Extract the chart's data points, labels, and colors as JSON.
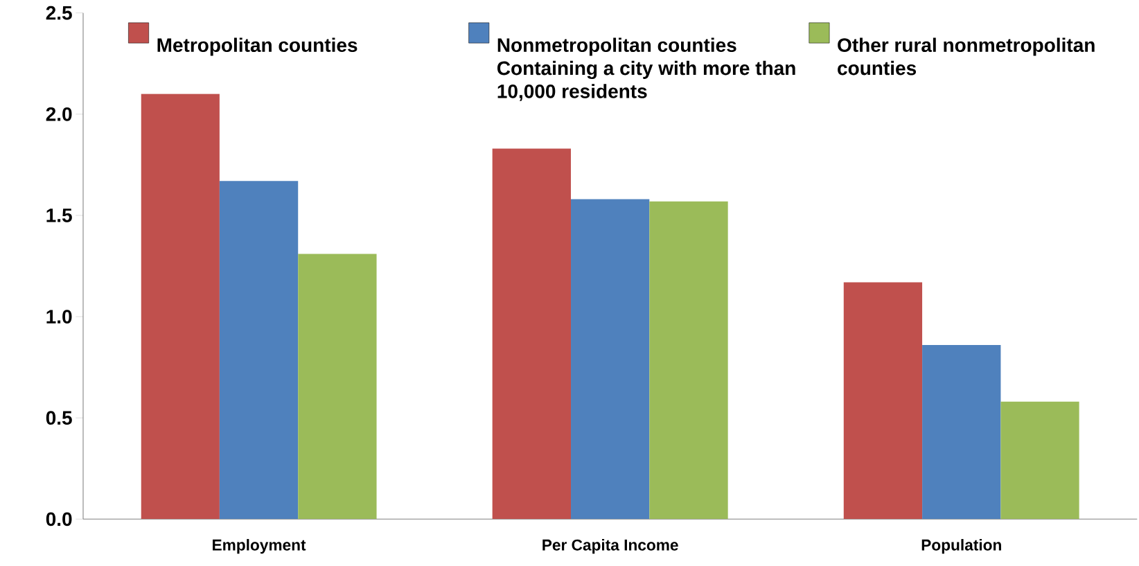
{
  "chart_data": {
    "type": "bar",
    "categories": [
      "Employment",
      "Per Capita Income",
      "Population"
    ],
    "series": [
      {
        "name": "Metropolitan counties",
        "color": "#c0504d",
        "values": [
          2.1,
          1.83,
          1.17
        ]
      },
      {
        "name": "Nonmetropolitan counties Containing a city with more than 10,000 residents",
        "color": "#4f81bd",
        "values": [
          1.67,
          1.58,
          0.86
        ]
      },
      {
        "name": "Other rural nonmetropolitan counties",
        "color": "#9bbb59",
        "values": [
          1.31,
          1.57,
          0.58
        ]
      }
    ],
    "ylim": [
      0,
      2.5
    ],
    "yticks": [
      {
        "value": 0,
        "label": "0.0"
      },
      {
        "value": 0.5,
        "label": "0.5"
      },
      {
        "value": 1,
        "label": "1.0"
      },
      {
        "value": 1.5,
        "label": "1.5"
      },
      {
        "value": 2,
        "label": "2.0"
      },
      {
        "value": 2.5,
        "label": "2.5"
      }
    ],
    "grid": false,
    "legend": "top"
  }
}
